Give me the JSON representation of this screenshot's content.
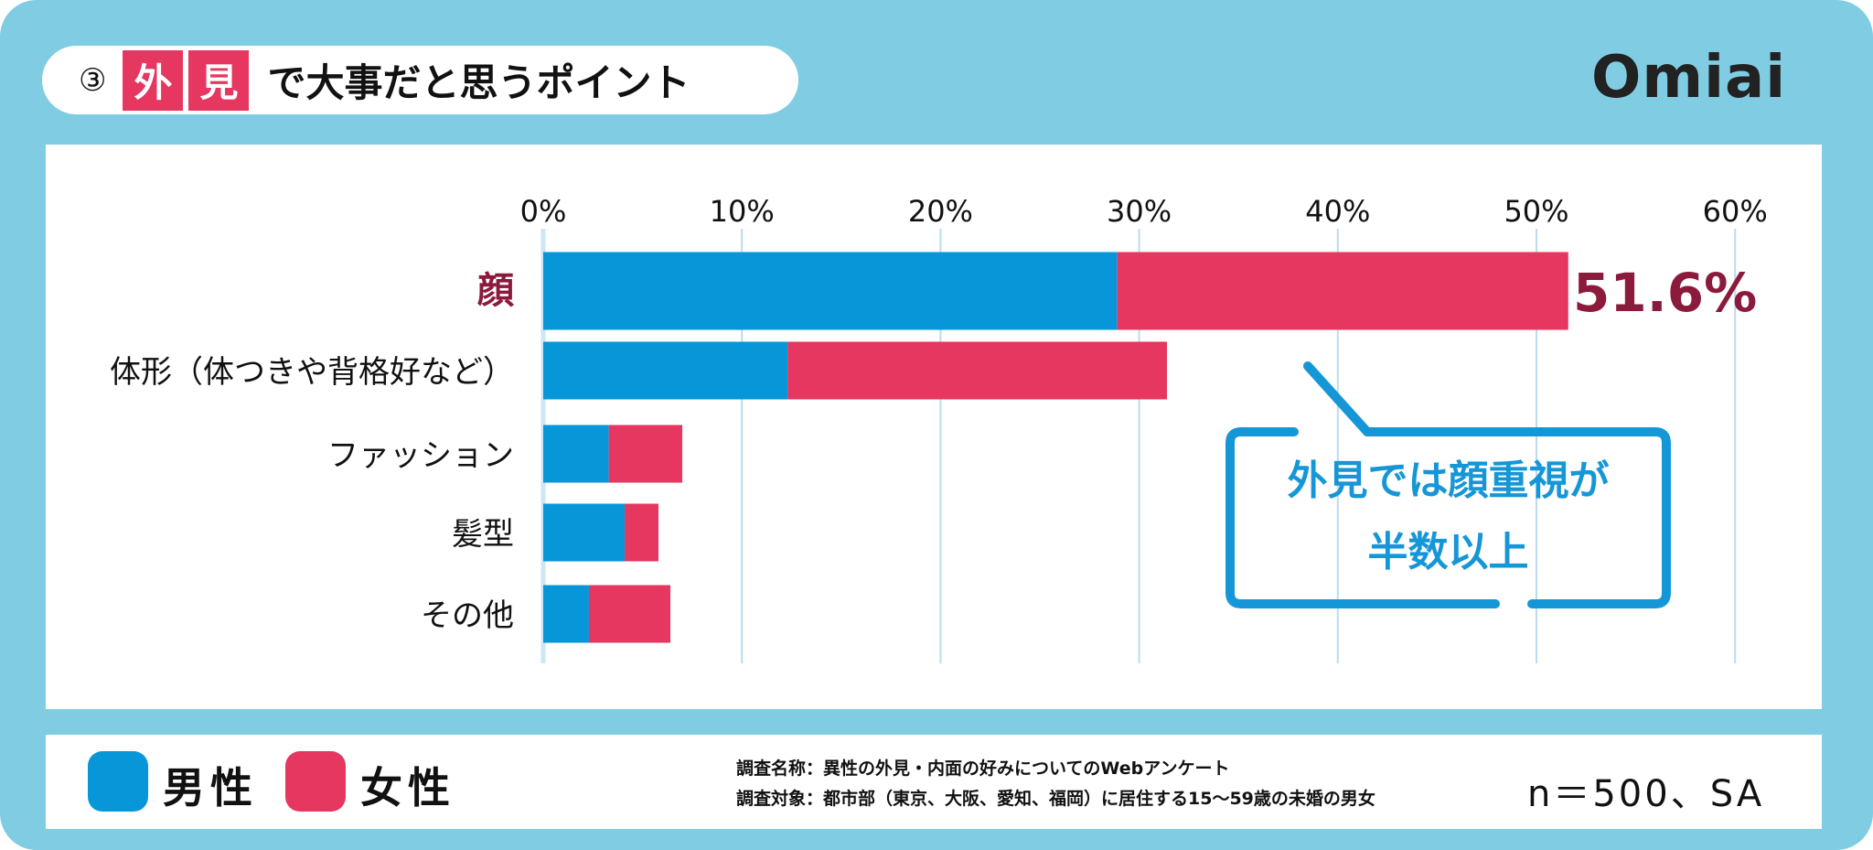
{
  "title": {
    "number": "③",
    "highlight": [
      "外",
      "見"
    ],
    "rest": "で大事だと思うポイント"
  },
  "logo": "Omiai",
  "colors": {
    "male": "#0796d8",
    "female": "#e5375f",
    "accent_label": "#8b1a3c",
    "callout": "#1596d6",
    "background": "#80cde3"
  },
  "chart_data": {
    "type": "bar",
    "stacked": true,
    "orientation": "horizontal",
    "categories": [
      "顔",
      "体形（体つきや背格好など）",
      "ファッション",
      "髪型",
      "その他"
    ],
    "series": [
      {
        "name": "男性",
        "values": [
          28.9,
          12.3,
          3.3,
          4.1,
          2.3
        ]
      },
      {
        "name": "女性",
        "values": [
          22.7,
          19.1,
          3.7,
          1.7,
          4.1
        ]
      }
    ],
    "xlim": [
      0,
      60
    ],
    "xticks": [
      "0%",
      "10%",
      "20%",
      "30%",
      "40%",
      "50%",
      "60%"
    ],
    "grid": true,
    "data_labels": [
      {
        "category": "顔",
        "text": "51.6%"
      }
    ],
    "annotation": [
      "外見では顔重視が",
      "半数以上"
    ],
    "legend_position": "bottom-left"
  },
  "legend": {
    "male": "男性",
    "female": "女性"
  },
  "notes": {
    "survey_name": "調査名称：異性の外見・内面の好みについてのWebアンケート",
    "survey_target": "調査対象：都市部（東京、大阪、愛知、福岡）に居住する15～59歳の未婚の男女",
    "sample": "n＝500、SA"
  }
}
